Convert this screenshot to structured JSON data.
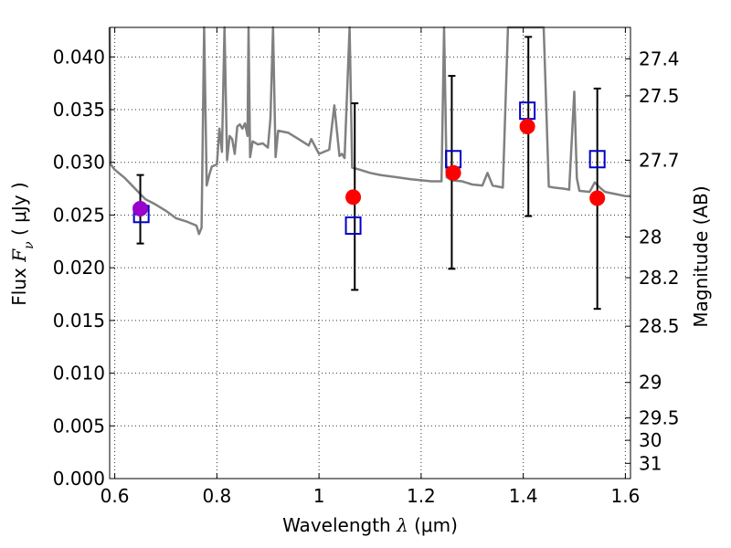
{
  "chart_data": {
    "type": "scatter",
    "xlabel": "Wavelength  λ (μm)",
    "ylabel": "Flux  F_ν  ( μJy )",
    "ylabel_parts": {
      "prefix": "Flux  ",
      "symbol": "F",
      "subscript": "ν",
      "suffix": "  ( μJy )"
    },
    "xlabel_parts": {
      "prefix": "Wavelength  ",
      "symbol": "λ",
      "suffix": " (μm)"
    },
    "y2label": "Magnitude (AB)",
    "xlim": [
      0.59,
      1.61
    ],
    "ylim": [
      0.0,
      0.0428
    ],
    "x_ticks": [
      0.6,
      0.8,
      1.0,
      1.2,
      1.4,
      1.6
    ],
    "x_tick_labels": [
      "0.6",
      "0.8",
      "1",
      "1.2",
      "1.4",
      "1.6"
    ],
    "y_ticks": [
      0.0,
      0.005,
      0.01,
      0.015,
      0.02,
      0.025,
      0.03,
      0.035,
      0.04
    ],
    "y_tick_labels": [
      "0.000",
      "0.005",
      "0.010",
      "0.015",
      "0.020",
      "0.025",
      "0.030",
      "0.035",
      "0.040"
    ],
    "y2_ticks": [
      27.4,
      27.5,
      27.7,
      28,
      28.2,
      28.5,
      29,
      29.5,
      30,
      31
    ],
    "y2_tick_labels": [
      "27.4",
      "27.5",
      "27.7",
      "28",
      "28.2",
      "28.5",
      "29",
      "29.5",
      "30",
      "31"
    ],
    "grid": true,
    "series": [
      {
        "kind": "line",
        "color": "#808080",
        "points": [
          [
            0.59,
            0.0428
          ],
          [
            0.592,
            0.0298
          ],
          [
            0.6,
            0.0293
          ],
          [
            0.62,
            0.0285
          ],
          [
            0.64,
            0.0275
          ],
          [
            0.66,
            0.0265
          ],
          [
            0.68,
            0.026
          ],
          [
            0.7,
            0.0254
          ],
          [
            0.72,
            0.0247
          ],
          [
            0.74,
            0.0244
          ],
          [
            0.76,
            0.024
          ],
          [
            0.765,
            0.0232
          ],
          [
            0.77,
            0.0238
          ],
          [
            0.775,
            0.0428
          ],
          [
            0.78,
            0.0278
          ],
          [
            0.785,
            0.0288
          ],
          [
            0.79,
            0.0296
          ],
          [
            0.8,
            0.0298
          ],
          [
            0.805,
            0.0332
          ],
          [
            0.81,
            0.031
          ],
          [
            0.815,
            0.0428
          ],
          [
            0.82,
            0.0302
          ],
          [
            0.825,
            0.0325
          ],
          [
            0.83,
            0.0322
          ],
          [
            0.835,
            0.0308
          ],
          [
            0.84,
            0.0334
          ],
          [
            0.845,
            0.0336
          ],
          [
            0.85,
            0.0332
          ],
          [
            0.855,
            0.0337
          ],
          [
            0.86,
            0.0325
          ],
          [
            0.862,
            0.0428
          ],
          [
            0.865,
            0.0305
          ],
          [
            0.87,
            0.032
          ],
          [
            0.88,
            0.0317
          ],
          [
            0.89,
            0.0318
          ],
          [
            0.9,
            0.0314
          ],
          [
            0.905,
            0.0342
          ],
          [
            0.91,
            0.0428
          ],
          [
            0.915,
            0.0305
          ],
          [
            0.92,
            0.033
          ],
          [
            0.94,
            0.0328
          ],
          [
            0.96,
            0.0322
          ],
          [
            0.98,
            0.0316
          ],
          [
            0.985,
            0.0322
          ],
          [
            1.0,
            0.0308
          ],
          [
            1.02,
            0.0312
          ],
          [
            1.03,
            0.0354
          ],
          [
            1.04,
            0.0306
          ],
          [
            1.045,
            0.0308
          ],
          [
            1.05,
            0.0304
          ],
          [
            1.06,
            0.0428
          ],
          [
            1.065,
            0.0295
          ],
          [
            1.08,
            0.0293
          ],
          [
            1.1,
            0.029
          ],
          [
            1.12,
            0.0288
          ],
          [
            1.15,
            0.0286
          ],
          [
            1.18,
            0.0284
          ],
          [
            1.2,
            0.0283
          ],
          [
            1.22,
            0.0282
          ],
          [
            1.24,
            0.0282
          ],
          [
            1.245,
            0.0428
          ],
          [
            1.25,
            0.0286
          ],
          [
            1.26,
            0.0283
          ],
          [
            1.28,
            0.0282
          ],
          [
            1.3,
            0.0279
          ],
          [
            1.32,
            0.0278
          ],
          [
            1.33,
            0.029
          ],
          [
            1.34,
            0.0278
          ],
          [
            1.36,
            0.0276
          ],
          [
            1.37,
            0.0428
          ],
          [
            1.44,
            0.0428
          ],
          [
            1.45,
            0.0277
          ],
          [
            1.46,
            0.0276
          ],
          [
            1.48,
            0.0275
          ],
          [
            1.49,
            0.0274
          ],
          [
            1.5,
            0.0367
          ],
          [
            1.505,
            0.0285
          ],
          [
            1.51,
            0.0273
          ],
          [
            1.53,
            0.0272
          ],
          [
            1.54,
            0.0281
          ],
          [
            1.55,
            0.0276
          ],
          [
            1.56,
            0.0272
          ],
          [
            1.58,
            0.027
          ],
          [
            1.6,
            0.0268
          ],
          [
            1.61,
            0.0268
          ]
        ]
      },
      {
        "kind": "errorbar",
        "color": "#000000",
        "points": [
          {
            "x": 0.65,
            "y": 0.0256,
            "lo": 0.0223,
            "hi": 0.0288
          },
          {
            "x": 1.07,
            "y": 0.0267,
            "lo": 0.0179,
            "hi": 0.0356
          },
          {
            "x": 1.26,
            "y": 0.029,
            "lo": 0.0199,
            "hi": 0.0382
          },
          {
            "x": 1.41,
            "y": 0.0334,
            "lo": 0.0249,
            "hi": 0.0419
          },
          {
            "x": 1.545,
            "y": 0.0266,
            "lo": 0.0161,
            "hi": 0.037
          }
        ]
      },
      {
        "kind": "marker-square",
        "color": "#0000cc",
        "points": [
          [
            0.652,
            0.0251
          ],
          [
            1.067,
            0.024
          ],
          [
            1.263,
            0.0303
          ],
          [
            1.408,
            0.0349
          ],
          [
            1.545,
            0.0303
          ]
        ]
      },
      {
        "kind": "marker-circle",
        "points": [
          {
            "x": 0.65,
            "y": 0.0256,
            "color": "#9900cc"
          },
          {
            "x": 1.067,
            "y": 0.0267,
            "color": "#ff0000"
          },
          {
            "x": 1.263,
            "y": 0.029,
            "color": "#ff0000"
          },
          {
            "x": 1.408,
            "y": 0.0334,
            "color": "#ff0000"
          },
          {
            "x": 1.545,
            "y": 0.0266,
            "color": "#ff0000"
          }
        ]
      }
    ]
  }
}
